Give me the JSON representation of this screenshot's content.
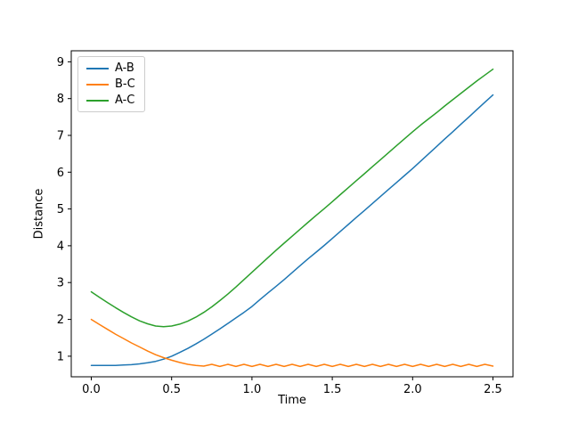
{
  "chart_data": {
    "type": "line",
    "xlabel": "Time",
    "ylabel": "Distance",
    "xlim": [
      -0.125,
      2.625
    ],
    "ylim": [
      0.44,
      9.3
    ],
    "legend_position": "upper left",
    "grid": false,
    "xticks": [
      {
        "value": 0.0,
        "label": "0.0"
      },
      {
        "value": 0.5,
        "label": "0.5"
      },
      {
        "value": 1.0,
        "label": "1.0"
      },
      {
        "value": 1.5,
        "label": "1.5"
      },
      {
        "value": 2.0,
        "label": "2.0"
      },
      {
        "value": 2.5,
        "label": "2.5"
      }
    ],
    "yticks": [
      {
        "value": 1,
        "label": "1"
      },
      {
        "value": 2,
        "label": "2"
      },
      {
        "value": 3,
        "label": "3"
      },
      {
        "value": 4,
        "label": "4"
      },
      {
        "value": 5,
        "label": "5"
      },
      {
        "value": 6,
        "label": "6"
      },
      {
        "value": 7,
        "label": "7"
      },
      {
        "value": 8,
        "label": "8"
      },
      {
        "value": 9,
        "label": "9"
      }
    ],
    "x": [
      0,
      0.05,
      0.1,
      0.15,
      0.2,
      0.25,
      0.3,
      0.35,
      0.4,
      0.45,
      0.5,
      0.55,
      0.6,
      0.65,
      0.7,
      0.75,
      0.8,
      0.85,
      0.9,
      0.95,
      1,
      1.05,
      1.1,
      1.15,
      1.2,
      1.25,
      1.3,
      1.35,
      1.4,
      1.45,
      1.5,
      1.55,
      1.6,
      1.65,
      1.7,
      1.75,
      1.8,
      1.85,
      1.9,
      1.95,
      2,
      2.05,
      2.1,
      2.15,
      2.2,
      2.25,
      2.3,
      2.35,
      2.4,
      2.45,
      2.5
    ],
    "series": [
      {
        "name": "A-B",
        "color": "#1f77b4",
        "values": [
          0.75,
          0.75,
          0.75,
          0.75,
          0.76,
          0.77,
          0.79,
          0.82,
          0.86,
          0.92,
          1.0,
          1.1,
          1.21,
          1.33,
          1.46,
          1.6,
          1.74,
          1.89,
          2.04,
          2.19,
          2.35,
          2.54,
          2.72,
          2.9,
          3.08,
          3.27,
          3.46,
          3.65,
          3.83,
          4.01,
          4.2,
          4.39,
          4.58,
          4.77,
          4.96,
          5.15,
          5.34,
          5.53,
          5.72,
          5.91,
          6.1,
          6.3,
          6.5,
          6.7,
          6.9,
          7.1,
          7.3,
          7.5,
          7.7,
          7.9,
          8.1
        ]
      },
      {
        "name": "B-C",
        "color": "#ff7f0e",
        "values": [
          2.0,
          1.86,
          1.73,
          1.6,
          1.48,
          1.36,
          1.25,
          1.14,
          1.04,
          0.96,
          0.89,
          0.83,
          0.78,
          0.75,
          0.73,
          0.78,
          0.72,
          0.78,
          0.72,
          0.78,
          0.72,
          0.78,
          0.72,
          0.78,
          0.72,
          0.78,
          0.72,
          0.78,
          0.72,
          0.78,
          0.72,
          0.78,
          0.72,
          0.78,
          0.72,
          0.78,
          0.72,
          0.78,
          0.72,
          0.78,
          0.72,
          0.78,
          0.72,
          0.78,
          0.72,
          0.78,
          0.72,
          0.78,
          0.72,
          0.78,
          0.73
        ]
      },
      {
        "name": "A-C",
        "color": "#2ca02c",
        "values": [
          2.75,
          2.6,
          2.46,
          2.32,
          2.19,
          2.07,
          1.96,
          1.88,
          1.82,
          1.8,
          1.82,
          1.87,
          1.95,
          2.06,
          2.19,
          2.34,
          2.51,
          2.69,
          2.88,
          3.08,
          3.28,
          3.48,
          3.68,
          3.88,
          4.07,
          4.26,
          4.45,
          4.64,
          4.83,
          5.01,
          5.2,
          5.39,
          5.58,
          5.77,
          5.96,
          6.15,
          6.34,
          6.53,
          6.72,
          6.91,
          7.1,
          7.28,
          7.45,
          7.62,
          7.8,
          7.97,
          8.14,
          8.31,
          8.48,
          8.64,
          8.8
        ]
      }
    ]
  }
}
